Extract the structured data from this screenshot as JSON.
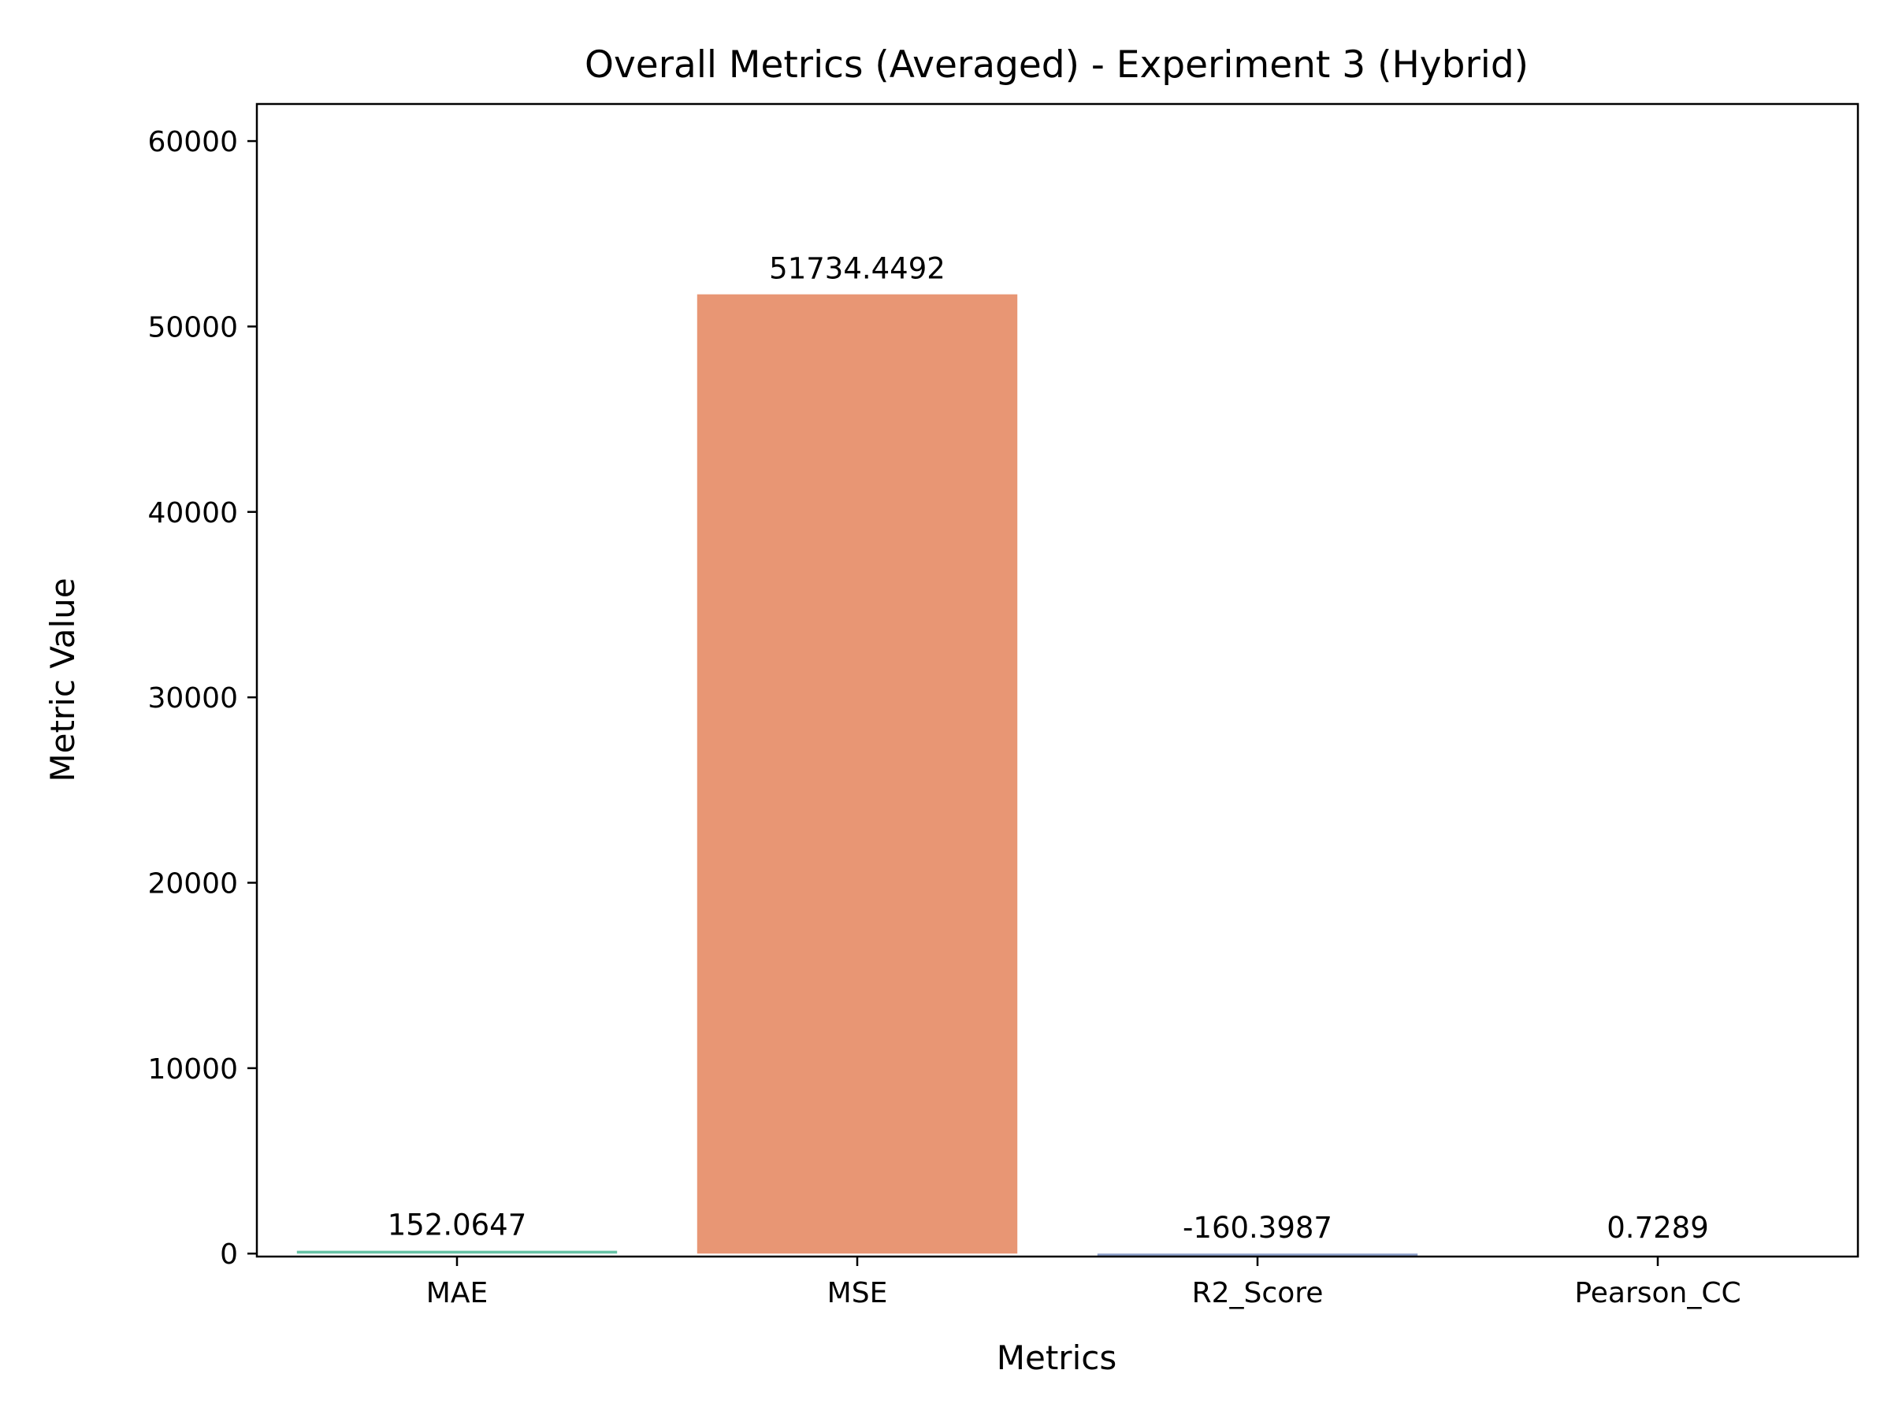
{
  "chart_data": {
    "type": "bar",
    "title": "Overall Metrics (Averaged) - Experiment 3 (Hybrid)",
    "xlabel": "Metrics",
    "ylabel": "Metric Value",
    "categories": [
      "MAE",
      "MSE",
      "R2_Score",
      "Pearson_CC"
    ],
    "values": [
      152.0647,
      51734.4492,
      -160.3987,
      0.7289
    ],
    "value_labels": [
      "152.0647",
      "51734.4492",
      "-160.3987",
      "0.7289"
    ],
    "colors": [
      "#66c2a5",
      "#e89674",
      "#8da0cb",
      "#e78ac3"
    ],
    "ylim": [
      -160.4,
      62000
    ],
    "yticks": [
      0,
      10000,
      20000,
      30000,
      40000,
      50000,
      60000
    ],
    "ytick_labels": [
      "0",
      "10000",
      "20000",
      "30000",
      "40000",
      "50000",
      "60000"
    ],
    "grid": false,
    "legend": "none"
  }
}
